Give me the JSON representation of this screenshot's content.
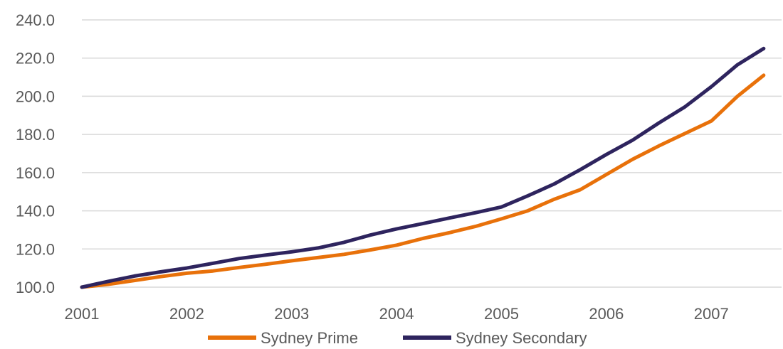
{
  "chart_data": {
    "type": "line",
    "title": "",
    "xlabel": "",
    "ylabel": "",
    "x_tick_labels": [
      "2001",
      "2002",
      "2003",
      "2004",
      "2005",
      "2006",
      "2007"
    ],
    "y_tick_labels": [
      "100.0",
      "120.0",
      "140.0",
      "160.0",
      "180.0",
      "200.0",
      "220.0",
      "240.0"
    ],
    "ylim": [
      100,
      240
    ],
    "xlim": [
      2001,
      2007.67
    ],
    "grid": true,
    "legend_position": "bottom",
    "x": [
      2001.0,
      2001.25,
      2001.5,
      2001.75,
      2002.0,
      2002.25,
      2002.5,
      2002.75,
      2003.0,
      2003.25,
      2003.5,
      2003.75,
      2004.0,
      2004.25,
      2004.5,
      2004.75,
      2005.0,
      2005.25,
      2005.5,
      2005.75,
      2006.0,
      2006.25,
      2006.5,
      2006.75,
      2007.0,
      2007.25,
      2007.5
    ],
    "series": [
      {
        "name": "Sydney Prime",
        "color": "#e8710a",
        "values": [
          100.0,
          101.5,
          103.5,
          105.5,
          107.3,
          108.5,
          110.3,
          112.0,
          113.8,
          115.5,
          117.2,
          119.5,
          122.0,
          125.5,
          128.5,
          131.8,
          135.8,
          140.0,
          146.0,
          151.0,
          159.0,
          167.0,
          174.0,
          180.5,
          187.0,
          200.0,
          211.0
        ]
      },
      {
        "name": "Sydney Secondary",
        "color": "#2e245e",
        "values": [
          100.0,
          103.0,
          105.8,
          108.0,
          110.0,
          112.5,
          115.0,
          116.8,
          118.5,
          120.5,
          123.5,
          127.3,
          130.5,
          133.3,
          136.2,
          139.0,
          142.0,
          147.8,
          154.0,
          161.5,
          169.5,
          177.0,
          186.0,
          194.5,
          205.0,
          216.5,
          225.0
        ]
      }
    ]
  }
}
